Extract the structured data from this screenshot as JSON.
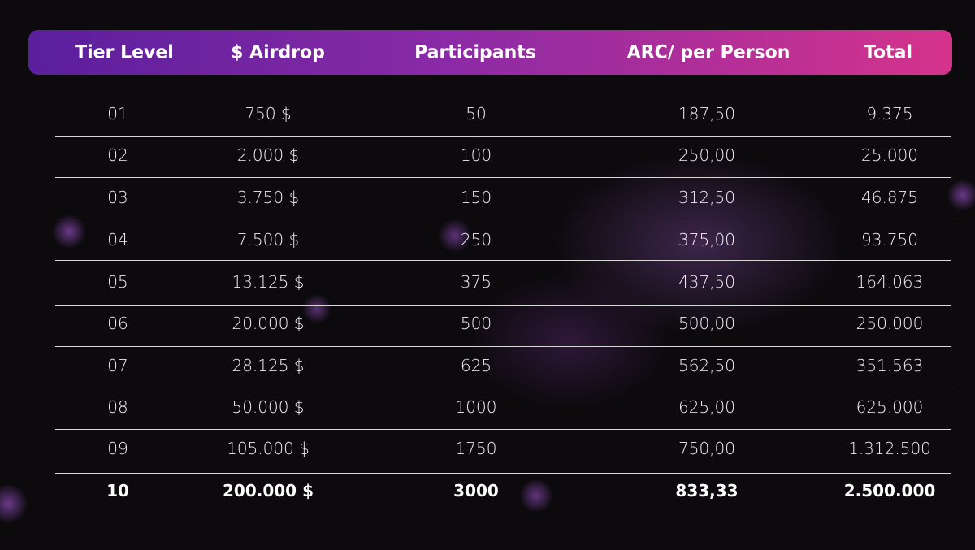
{
  "table": {
    "headers": [
      "Tier Level",
      "$ Airdrop",
      "Participants",
      "ARC/ per Person",
      "Total"
    ],
    "rows": [
      [
        "01",
        "750 $",
        "50",
        "187,50",
        "9.375"
      ],
      [
        "02",
        "2.000 $",
        "100",
        "250,00",
        "25.000"
      ],
      [
        "03",
        "3.750 $",
        "150",
        "312,50",
        "46.875"
      ],
      [
        "04",
        "7.500 $",
        "250",
        "375,00",
        "93.750"
      ],
      [
        "05",
        "13.125 $",
        "375",
        "437,50",
        "164.063"
      ],
      [
        "06",
        "20.000 $",
        "500",
        "500,00",
        "250.000"
      ],
      [
        "07",
        "28.125 $",
        "625",
        "562,50",
        "351.563"
      ],
      [
        "08",
        "50.000 $",
        "1000",
        "625,00",
        "625.000"
      ],
      [
        "09",
        "105.000 $",
        "1750",
        "750,00",
        "1.312.500"
      ],
      [
        "10",
        "200.000 $",
        "3000",
        "833,33",
        "2.500.000"
      ]
    ]
  }
}
